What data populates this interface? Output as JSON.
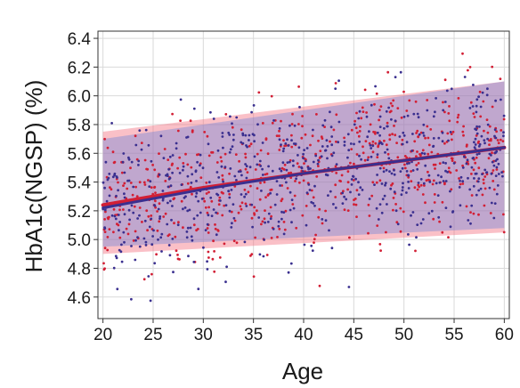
{
  "chart_data": {
    "type": "scatter",
    "title": "",
    "xlabel": "Age",
    "ylabel": "HbA1c(NGSP) (%)",
    "xlim": [
      19.5,
      60.5
    ],
    "ylim": [
      4.45,
      6.45
    ],
    "xticks": [
      20,
      25,
      30,
      35,
      40,
      45,
      50,
      55,
      60
    ],
    "xtick_labels": [
      "20",
      "25",
      "30",
      "35",
      "40",
      "45",
      "50",
      "55",
      "60"
    ],
    "yticks": [
      4.6,
      4.8,
      5.0,
      5.2,
      5.4,
      5.6,
      5.8,
      6.0,
      6.2,
      6.4
    ],
    "ytick_labels": [
      "4.6",
      "4.8",
      "5.0",
      "5.2",
      "5.4",
      "5.6",
      "5.8",
      "6.0",
      "6.2",
      "6.4"
    ],
    "grid": true,
    "legend": "none",
    "series": [
      {
        "color": "#d21f35",
        "points_count_approx": 650,
        "trend": {
          "x": [
            20,
            30,
            40,
            50,
            60
          ],
          "y": [
            5.24,
            5.36,
            5.46,
            5.55,
            5.64
          ]
        },
        "band": {
          "x": [
            20,
            60
          ],
          "lower": [
            4.9,
            5.05
          ],
          "upper": [
            5.75,
            6.1
          ]
        }
      },
      {
        "color": "#3a2f8f",
        "points_count_approx": 650,
        "trend": {
          "x": [
            20,
            30,
            40,
            50,
            60
          ],
          "y": [
            5.22,
            5.35,
            5.46,
            5.55,
            5.64
          ]
        },
        "band": {
          "x": [
            20,
            60
          ],
          "lower": [
            4.95,
            5.08
          ],
          "upper": [
            5.7,
            6.1
          ]
        }
      }
    ],
    "colors": {
      "red_band": "#f26a7a",
      "blue_band": "#6f86d8",
      "grid": "#d9d9d9",
      "frame": "#333333"
    }
  }
}
